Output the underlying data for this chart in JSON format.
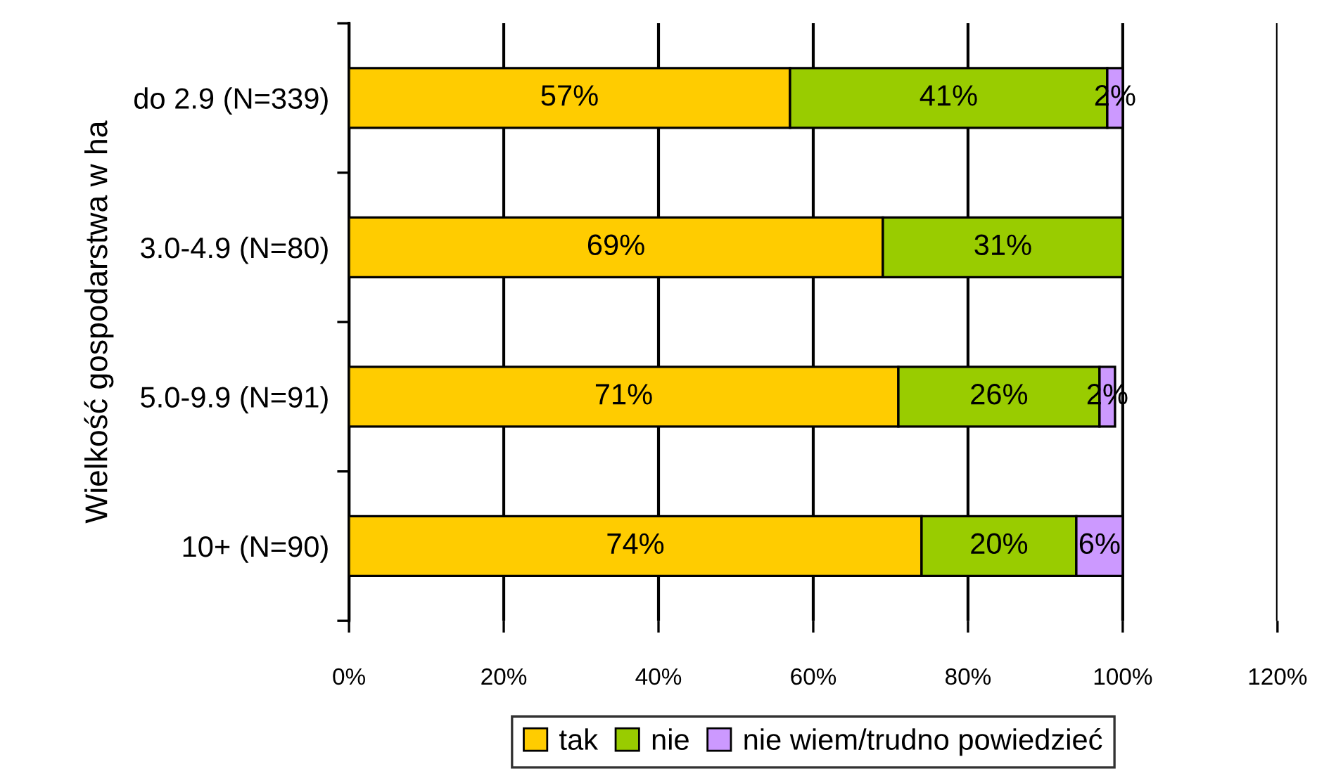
{
  "chart_data": {
    "type": "bar",
    "orientation": "horizontal",
    "stacked": true,
    "categories": [
      "do 2.9 (N=339)",
      "3.0-4.9 (N=80)",
      "5.0-9.9 (N=91)",
      "10+ (N=90)"
    ],
    "series": [
      {
        "name": "tak",
        "color": "#ffcc00",
        "values": [
          57,
          69,
          71,
          74
        ],
        "value_labels": [
          "57%",
          "69%",
          "71%",
          "74%"
        ]
      },
      {
        "name": "nie",
        "color": "#99cc00",
        "values": [
          41,
          31,
          26,
          20
        ],
        "value_labels": [
          "41%",
          "31%",
          "26%",
          "20%"
        ]
      },
      {
        "name": "nie wiem/trudno powiedzieć",
        "color": "#cc99ff",
        "values": [
          2,
          null,
          2,
          6
        ],
        "value_labels": [
          "2%",
          null,
          "2%",
          "6%"
        ]
      }
    ],
    "ylabel": "Wielkość gospodarstwa w ha",
    "xlim": [
      0,
      120
    ],
    "xticks": [
      {
        "value": 0,
        "label": "0%"
      },
      {
        "value": 20,
        "label": "20%"
      },
      {
        "value": 40,
        "label": "40%"
      },
      {
        "value": 60,
        "label": "60%"
      },
      {
        "value": 80,
        "label": "80%"
      },
      {
        "value": 100,
        "label": "100%"
      },
      {
        "value": 120,
        "label": "120%"
      }
    ],
    "grid": "x",
    "legend": "bottom"
  }
}
